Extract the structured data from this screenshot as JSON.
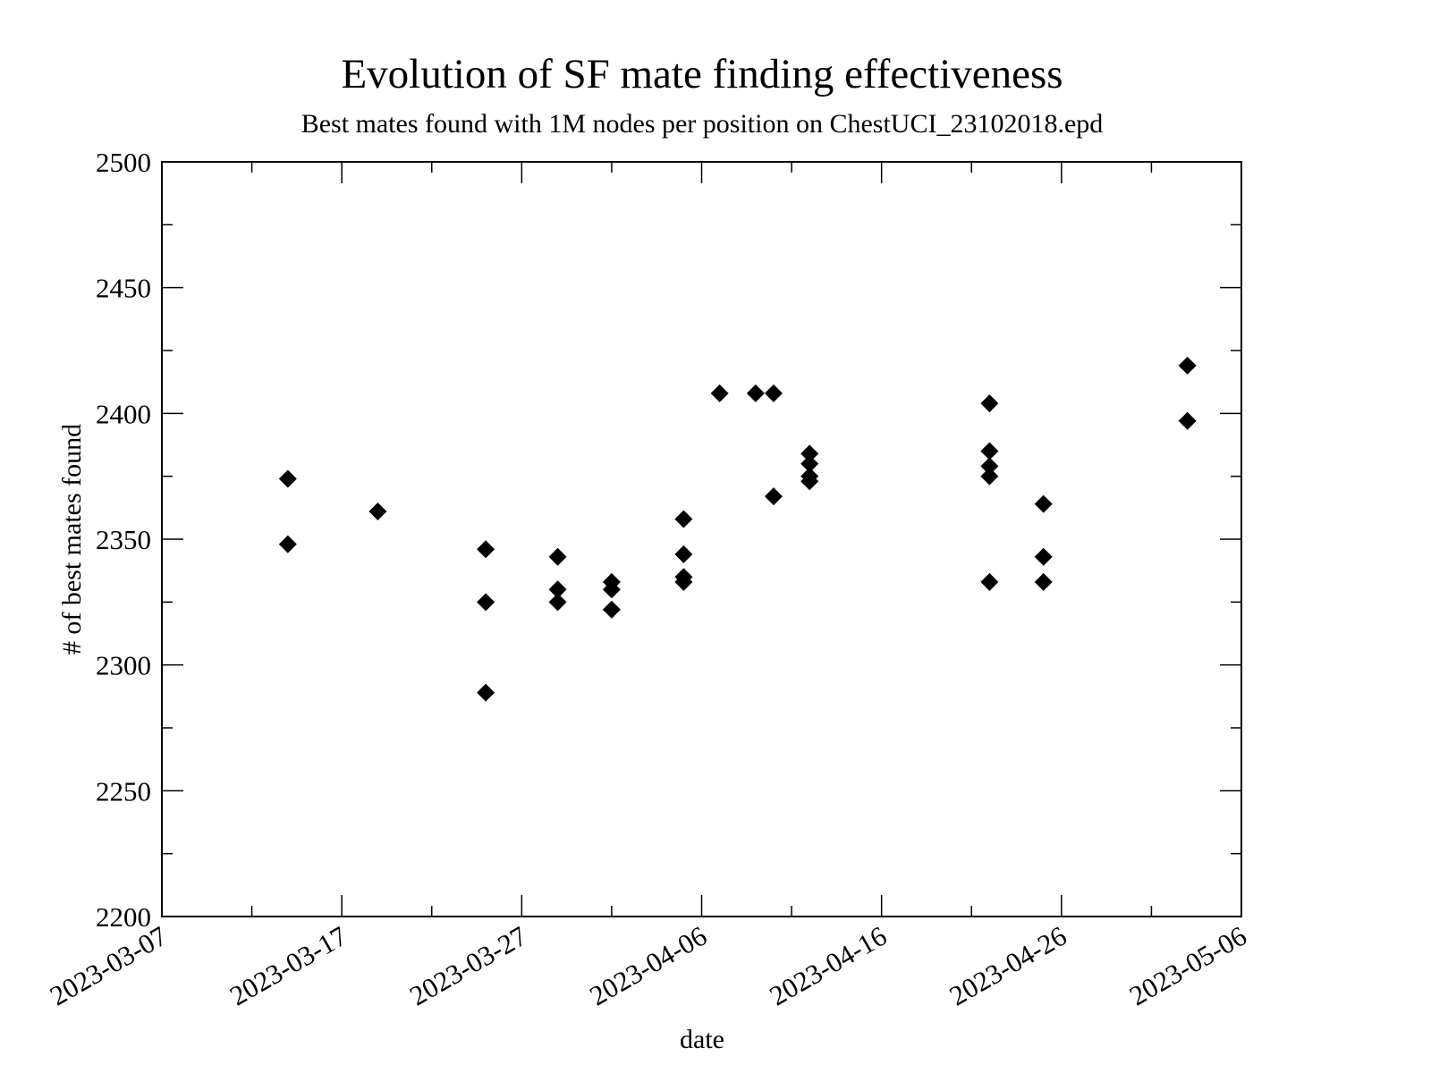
{
  "chart_data": {
    "type": "scatter",
    "title": "Evolution of SF mate finding effectiveness",
    "subtitle": "Best mates found with 1M nodes per position on ChestUCI_23102018.epd",
    "xlabel": "date",
    "ylabel": "# of best mates found",
    "xlim": [
      "2023-03-07",
      "2023-05-06"
    ],
    "ylim": [
      2200,
      2500
    ],
    "x_ticks": [
      "2023-03-07",
      "2023-03-17",
      "2023-03-27",
      "2023-04-06",
      "2023-04-16",
      "2023-04-26",
      "2023-05-06"
    ],
    "y_ticks": [
      2200,
      2250,
      2300,
      2350,
      2400,
      2450,
      2500
    ],
    "grid": false,
    "marker": "diamond",
    "marker_color": "#000000",
    "series": [
      {
        "name": "best mates found",
        "points": [
          {
            "x": "2023-03-14",
            "y": 2374
          },
          {
            "x": "2023-03-14",
            "y": 2348
          },
          {
            "x": "2023-03-19",
            "y": 2361
          },
          {
            "x": "2023-03-25",
            "y": 2346
          },
          {
            "x": "2023-03-25",
            "y": 2325
          },
          {
            "x": "2023-03-25",
            "y": 2289
          },
          {
            "x": "2023-03-29",
            "y": 2343
          },
          {
            "x": "2023-03-29",
            "y": 2330
          },
          {
            "x": "2023-03-29",
            "y": 2325
          },
          {
            "x": "2023-04-01",
            "y": 2333
          },
          {
            "x": "2023-04-01",
            "y": 2330
          },
          {
            "x": "2023-04-01",
            "y": 2322
          },
          {
            "x": "2023-04-05",
            "y": 2358
          },
          {
            "x": "2023-04-05",
            "y": 2344
          },
          {
            "x": "2023-04-05",
            "y": 2335
          },
          {
            "x": "2023-04-05",
            "y": 2333
          },
          {
            "x": "2023-04-07",
            "y": 2408
          },
          {
            "x": "2023-04-09",
            "y": 2408
          },
          {
            "x": "2023-04-10",
            "y": 2408
          },
          {
            "x": "2023-04-10",
            "y": 2367
          },
          {
            "x": "2023-04-12",
            "y": 2384
          },
          {
            "x": "2023-04-12",
            "y": 2380
          },
          {
            "x": "2023-04-12",
            "y": 2375
          },
          {
            "x": "2023-04-12",
            "y": 2373
          },
          {
            "x": "2023-04-22",
            "y": 2404
          },
          {
            "x": "2023-04-22",
            "y": 2385
          },
          {
            "x": "2023-04-22",
            "y": 2379
          },
          {
            "x": "2023-04-22",
            "y": 2375
          },
          {
            "x": "2023-04-22",
            "y": 2333
          },
          {
            "x": "2023-04-25",
            "y": 2364
          },
          {
            "x": "2023-04-25",
            "y": 2343
          },
          {
            "x": "2023-04-25",
            "y": 2333
          },
          {
            "x": "2023-05-03",
            "y": 2419
          },
          {
            "x": "2023-05-03",
            "y": 2397
          }
        ]
      }
    ]
  }
}
